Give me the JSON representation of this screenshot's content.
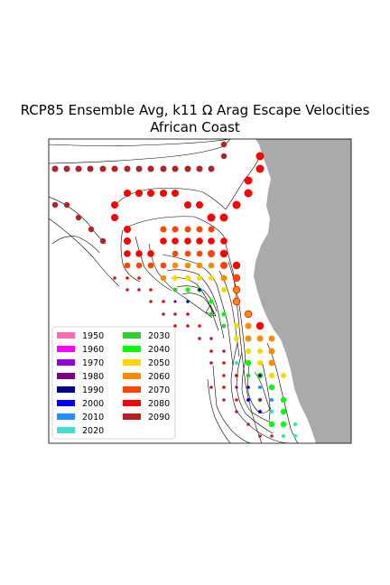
{
  "chart_data": {
    "type": "scatter",
    "title_line1": "RCP85 Ensemble Avg, k11 Ω Arag Escape Velocities",
    "title_line2": "African Coast",
    "xlabel": "",
    "ylabel": "",
    "map_background": "contour map with gray land mass on the east side",
    "land_color": "#aaaaaa",
    "legend_position": "lower-left",
    "legend_columns": 2,
    "legend": [
      {
        "label": "1950",
        "color": "#ff69b4"
      },
      {
        "label": "1960",
        "color": "#ff00ff"
      },
      {
        "label": "1970",
        "color": "#9400d3"
      },
      {
        "label": "1980",
        "color": "#800080"
      },
      {
        "label": "1990",
        "color": "#00008b"
      },
      {
        "label": "2000",
        "color": "#0000ff"
      },
      {
        "label": "2010",
        "color": "#1e90ff"
      },
      {
        "label": "2020",
        "color": "#40e0d0"
      },
      {
        "label": "2030",
        "color": "#32cd32"
      },
      {
        "label": "2040",
        "color": "#00ff00"
      },
      {
        "label": "2050",
        "color": "#ffd700"
      },
      {
        "label": "2060",
        "color": "#ff8c00"
      },
      {
        "label": "2070",
        "color": "#ff4500"
      },
      {
        "label": "2080",
        "color": "#ff0000"
      },
      {
        "label": "2090",
        "color": "#b22222"
      }
    ]
  }
}
